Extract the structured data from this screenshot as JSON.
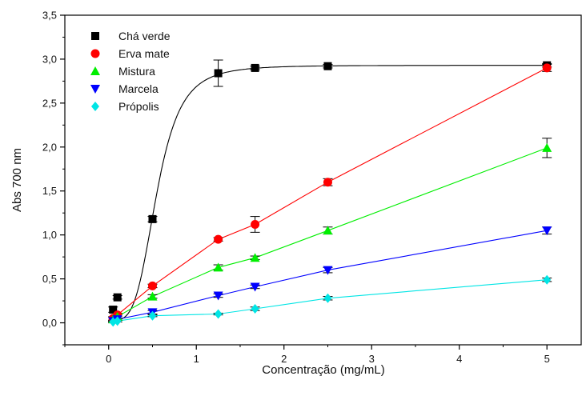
{
  "chart_data": {
    "type": "scatter",
    "xlabel": "Concentração (mg/mL)",
    "ylabel": "Abs 700 nm",
    "xlim": [
      -0.5,
      5.4
    ],
    "ylim": [
      -0.25,
      3.5
    ],
    "x_ticks": [
      0,
      1,
      2,
      3,
      4,
      5
    ],
    "y_ticks": [
      0.0,
      0.5,
      1.0,
      1.5,
      2.0,
      2.5,
      3.0,
      3.5
    ],
    "x_tick_labels": [
      "0",
      "1",
      "2",
      "3",
      "4",
      "5"
    ],
    "y_tick_labels": [
      "0,0",
      "0,5",
      "1,0",
      "1,5",
      "2,0",
      "2,5",
      "3,0",
      "3,5"
    ],
    "legend_position": "top-left",
    "series": [
      {
        "name": "Chá verde",
        "marker": "square",
        "color": "#000000",
        "x": [
          0.05,
          0.1,
          0.5,
          1.25,
          1.67,
          2.5,
          5.0
        ],
        "y": [
          0.15,
          0.29,
          1.18,
          2.84,
          2.9,
          2.92,
          2.93
        ],
        "err": [
          0.03,
          0.02,
          0.03,
          0.15,
          0.02,
          0.02,
          0.02
        ],
        "fit": "sigmoid"
      },
      {
        "name": "Erva mate",
        "marker": "circle",
        "color": "#ff0000",
        "x": [
          0.05,
          0.1,
          0.5,
          1.25,
          1.67,
          2.5,
          5.0
        ],
        "y": [
          0.05,
          0.09,
          0.42,
          0.95,
          1.12,
          1.6,
          2.9
        ],
        "err": [
          0.02,
          0.02,
          0.02,
          0.02,
          0.09,
          0.04,
          0.04
        ],
        "fit": "smooth"
      },
      {
        "name": "Mistura",
        "marker": "triangle-up",
        "color": "#00ee00",
        "x": [
          0.05,
          0.1,
          0.5,
          1.25,
          1.67,
          2.5,
          5.0
        ],
        "y": [
          0.04,
          0.07,
          0.3,
          0.63,
          0.74,
          1.05,
          1.99
        ],
        "err": [
          0.02,
          0.02,
          0.02,
          0.03,
          0.02,
          0.04,
          0.11
        ],
        "fit": "smooth"
      },
      {
        "name": "Marcela",
        "marker": "triangle-down",
        "color": "#0000ff",
        "x": [
          0.05,
          0.1,
          0.5,
          1.25,
          1.67,
          2.5,
          5.0
        ],
        "y": [
          0.02,
          0.04,
          0.12,
          0.31,
          0.41,
          0.6,
          1.05
        ],
        "err": [
          0.01,
          0.01,
          0.02,
          0.02,
          0.02,
          0.03,
          0.04
        ],
        "fit": "smooth"
      },
      {
        "name": "Própolis",
        "marker": "diamond",
        "color": "#00e5e5",
        "x": [
          0.05,
          0.1,
          0.5,
          1.25,
          1.67,
          2.5,
          5.0
        ],
        "y": [
          0.01,
          0.02,
          0.08,
          0.1,
          0.16,
          0.28,
          0.49
        ],
        "err": [
          0.01,
          0.01,
          0.01,
          0.01,
          0.02,
          0.02,
          0.02
        ],
        "fit": "smooth"
      }
    ]
  }
}
